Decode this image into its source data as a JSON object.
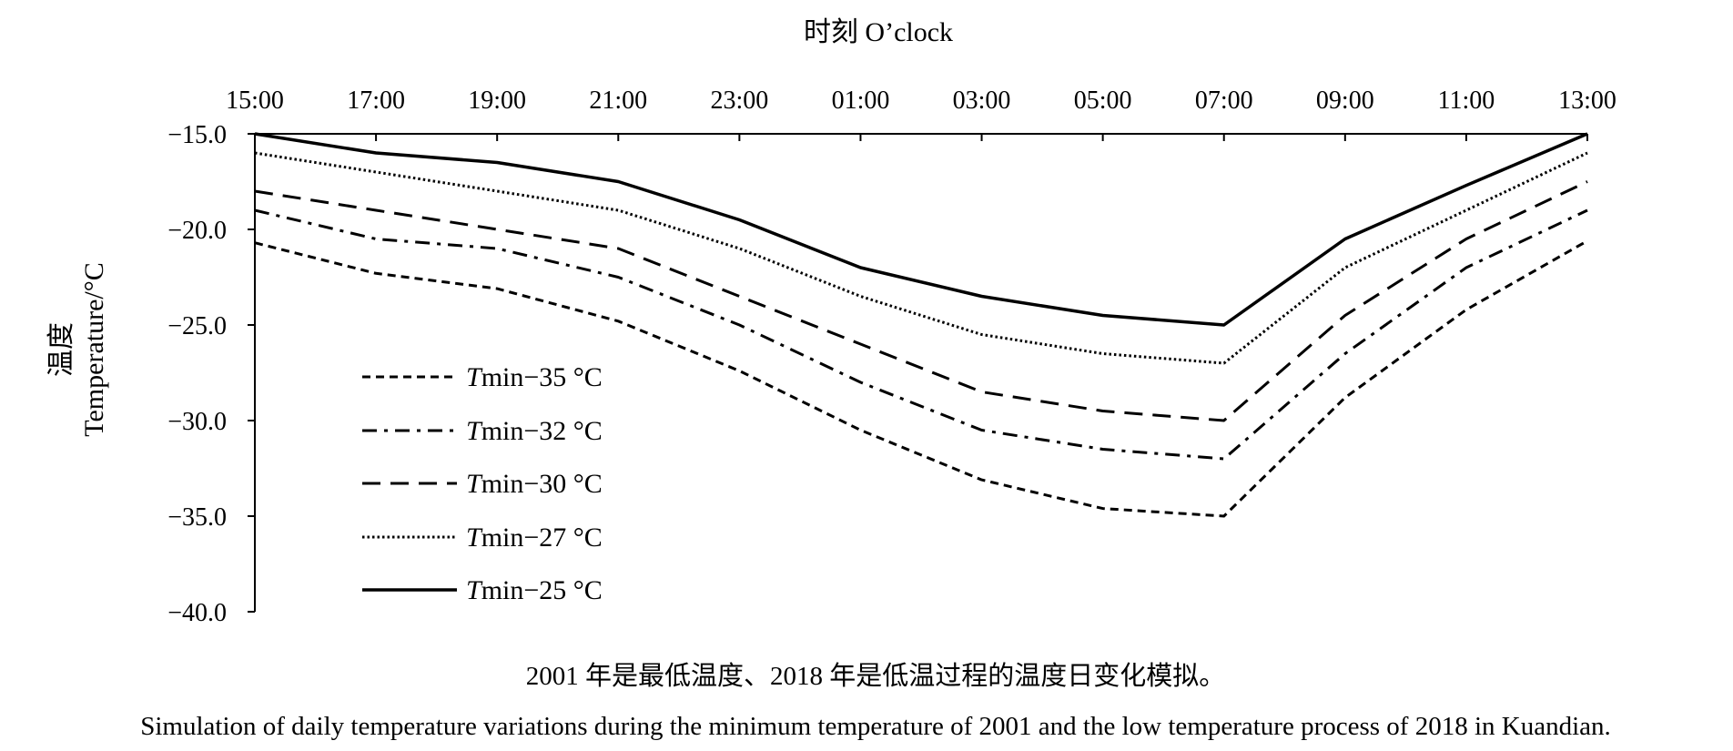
{
  "chart_data": {
    "type": "line",
    "x_axis_title": "时刻 O’clock",
    "y_axis_title_cn": "温度",
    "y_axis_title_en": "Temperature/°C",
    "x": [
      "15:00",
      "17:00",
      "19:00",
      "21:00",
      "23:00",
      "01:00",
      "03:00",
      "05:00",
      "07:00",
      "09:00",
      "11:00",
      "13:00"
    ],
    "y_ticks": [
      "−15.0",
      "−20.0",
      "−25.0",
      "−30.0",
      "−35.0",
      "−40.0"
    ],
    "ylim": [
      -40,
      -15
    ],
    "x_axis_position": "top",
    "grid": false,
    "legend_position": "lower-left",
    "series": [
      {
        "name_italic": "T",
        "name_rest": "min−35 °C",
        "style": "dashed-short",
        "values": [
          -20.7,
          -22.3,
          -23.1,
          -24.8,
          -27.4,
          -30.5,
          -33.1,
          -34.6,
          -35.0,
          -28.8,
          -24.2,
          -20.6
        ]
      },
      {
        "name_italic": "T",
        "name_rest": "min−32 °C",
        "style": "dash-dot",
        "values": [
          -19.0,
          -20.5,
          -21.0,
          -22.5,
          -25.0,
          -28.0,
          -30.5,
          -31.5,
          -32.0,
          -26.5,
          -22.0,
          -19.0
        ]
      },
      {
        "name_italic": "T",
        "name_rest": "min−30 °C",
        "style": "dashed-long",
        "values": [
          -18.0,
          -19.0,
          -20.0,
          -21.0,
          -23.5,
          -26.0,
          -28.5,
          -29.5,
          -30.0,
          -24.5,
          -20.5,
          -17.5
        ]
      },
      {
        "name_italic": "T",
        "name_rest": "min−27 °C",
        "style": "dotted",
        "values": [
          -16.0,
          -17.0,
          -18.0,
          -19.0,
          -21.0,
          -23.5,
          -25.5,
          -26.5,
          -27.0,
          -22.0,
          -19.0,
          -16.0
        ]
      },
      {
        "name_italic": "T",
        "name_rest": "min−25 °C",
        "style": "solid",
        "values": [
          -15.0,
          -16.0,
          -16.5,
          -17.5,
          -19.5,
          -22.0,
          -23.5,
          -24.5,
          -25.0,
          -20.5,
          -17.7,
          -15.0
        ]
      }
    ],
    "caption_cn": "2001 年是最低温度、2018 年是低温过程的温度日变化模拟。",
    "caption_en": "Simulation of daily temperature variations during the minimum temperature of 2001 and the low temperature process of 2018 in Kuandian."
  }
}
